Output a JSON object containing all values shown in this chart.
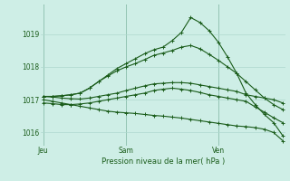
{
  "title": "Pression niveau de la mer( hPa )",
  "background_color": "#ceeee6",
  "grid_color": "#aed8ce",
  "line_color": "#1a5c1a",
  "ylim": [
    1015.6,
    1019.9
  ],
  "yticks": [
    1016,
    1017,
    1018,
    1019
  ],
  "x_ticks_labels": [
    "Jeu",
    "Sam",
    "Ven"
  ],
  "x_ticks_pos": [
    0,
    9,
    19
  ],
  "x_max": 27,
  "series": [
    [
      1017.1,
      1017.1,
      1017.12,
      1017.15,
      1017.2,
      1017.35,
      1017.55,
      1017.75,
      1017.95,
      1018.1,
      1018.25,
      1018.4,
      1018.52,
      1018.6,
      1018.8,
      1019.05,
      1019.5,
      1019.35,
      1019.1,
      1018.75,
      1018.3,
      1017.8,
      1017.2,
      1016.85,
      1016.55,
      1016.3,
      1015.9
    ],
    [
      1017.1,
      1017.1,
      1017.12,
      1017.15,
      1017.2,
      1017.35,
      1017.55,
      1017.72,
      1017.88,
      1018.0,
      1018.1,
      1018.22,
      1018.35,
      1018.42,
      1018.5,
      1018.6,
      1018.65,
      1018.55,
      1018.38,
      1018.2,
      1018.0,
      1017.8,
      1017.55,
      1017.3,
      1017.05,
      1016.85,
      1016.7
    ],
    [
      1017.1,
      1017.08,
      1017.05,
      1017.03,
      1017.02,
      1017.05,
      1017.1,
      1017.15,
      1017.2,
      1017.28,
      1017.35,
      1017.42,
      1017.48,
      1017.5,
      1017.52,
      1017.52,
      1017.5,
      1017.45,
      1017.4,
      1017.35,
      1017.3,
      1017.25,
      1017.15,
      1017.1,
      1017.05,
      1017.0,
      1016.9
    ],
    [
      1016.9,
      1016.88,
      1016.85,
      1016.85,
      1016.87,
      1016.9,
      1016.95,
      1017.0,
      1017.05,
      1017.1,
      1017.15,
      1017.2,
      1017.28,
      1017.32,
      1017.35,
      1017.32,
      1017.28,
      1017.22,
      1017.15,
      1017.1,
      1017.05,
      1017.0,
      1016.95,
      1016.78,
      1016.62,
      1016.45,
      1016.3
    ],
    [
      1017.0,
      1016.95,
      1016.9,
      1016.85,
      1016.8,
      1016.75,
      1016.7,
      1016.65,
      1016.62,
      1016.6,
      1016.58,
      1016.55,
      1016.52,
      1016.5,
      1016.47,
      1016.44,
      1016.4,
      1016.36,
      1016.32,
      1016.28,
      1016.24,
      1016.2,
      1016.18,
      1016.15,
      1016.1,
      1016.0,
      1015.75
    ]
  ]
}
